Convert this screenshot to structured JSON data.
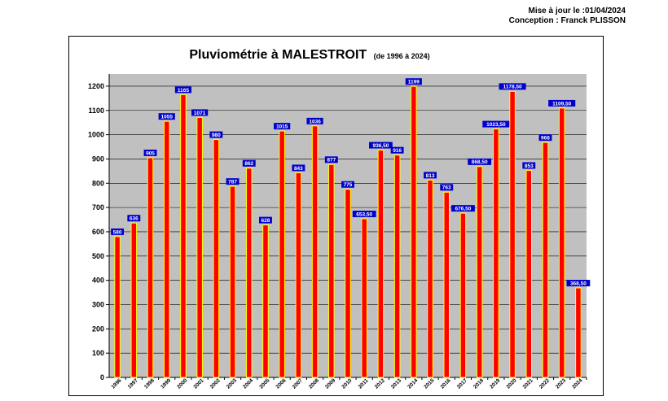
{
  "header": {
    "update_line": "Mise à jour le :01/04/2024",
    "author_line": "Conception : Franck PLISSON"
  },
  "colors": {
    "plot_background": "#c0c0c0",
    "bar_fill": "#ff0000",
    "bar_border": "#ffff00",
    "label_box": "#0000cc",
    "label_text": "#ffffff"
  },
  "chart_data": {
    "type": "bar",
    "title": "Pluviométrie à MALESTROIT",
    "subtitle": "(de 1996 à 2024)",
    "xlabel": "",
    "ylabel": "",
    "ylim": [
      0,
      1250
    ],
    "yticks": [
      0,
      100,
      200,
      300,
      400,
      500,
      600,
      700,
      800,
      900,
      1000,
      1100,
      1200
    ],
    "grid": true,
    "legend": "none",
    "categories": [
      "1996",
      "1997",
      "1998",
      "1999",
      "2000",
      "2001",
      "2002",
      "2003",
      "2004",
      "2005",
      "2006",
      "2007",
      "2008",
      "2009",
      "2010",
      "2011",
      "2012",
      "2013",
      "2014",
      "2015",
      "2016",
      "2017",
      "2018",
      "2019",
      "2020",
      "2021",
      "2022",
      "2023",
      "2024"
    ],
    "values": [
      580,
      636,
      905,
      1055,
      1165,
      1071,
      980,
      787,
      862,
      628,
      1015,
      843,
      1036,
      877,
      775,
      653.5,
      936.5,
      916,
      1199,
      813,
      763,
      676.5,
      868.5,
      1023.5,
      1178.5,
      853,
      968,
      1109.5,
      368.5
    ],
    "value_labels": [
      "580",
      "636",
      "905",
      "1055",
      "1165",
      "1071",
      "980",
      "787",
      "862",
      "628",
      "1015",
      "843",
      "1036",
      "877",
      "775",
      "653,50",
      "936,50",
      "916",
      "1199",
      "813",
      "763",
      "676,50",
      "868,50",
      "1023,50",
      "1178,50",
      "853",
      "968",
      "1109,50",
      "368,50"
    ]
  }
}
